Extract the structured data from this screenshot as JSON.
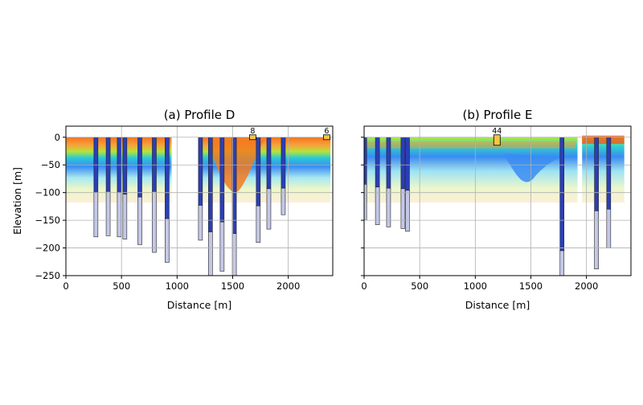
{
  "chart_data": [
    {
      "type": "heatmap",
      "title": "(a) Profile D",
      "xlabel": "Distance [m]",
      "ylabel": "Elevation [m]",
      "xlim": [
        0,
        2400
      ],
      "ylim": [
        -250,
        20
      ],
      "xticks": [
        "0",
        "500",
        "1000",
        "1500",
        "2000"
      ],
      "yticks": [
        "0",
        "−50",
        "−100",
        "−150",
        "−200",
        "−250"
      ],
      "grid": true,
      "colormap": "turbo",
      "surface": [
        [
          0,
          0
        ],
        [
          300,
          0
        ],
        [
          600,
          0
        ],
        [
          900,
          0
        ],
        [
          950,
          0
        ]
      ],
      "surface2": [
        [
          1200,
          0
        ],
        [
          1500,
          0
        ],
        [
          1800,
          0
        ],
        [
          2100,
          0
        ],
        [
          2380,
          0
        ]
      ],
      "mask_segments": [
        {
          "x0": 0,
          "x1": 950,
          "bottom": -118
        },
        {
          "x0": 1200,
          "x1": 2380,
          "bottom": -118
        }
      ],
      "gap": [
        950,
        1200
      ],
      "boreholes": [
        {
          "x": 270,
          "bottom": -180,
          "blue_to": -100
        },
        {
          "x": 380,
          "bottom": -178,
          "blue_to": -98
        },
        {
          "x": 480,
          "bottom": -180,
          "blue_to": -100
        },
        {
          "x": 530,
          "bottom": -184,
          "blue_to": -103
        },
        {
          "x": 665,
          "bottom": -194,
          "blue_to": -108
        },
        {
          "x": 795,
          "bottom": -208,
          "blue_to": -98
        },
        {
          "x": 910,
          "bottom": -226,
          "blue_to": -147
        },
        {
          "x": 1210,
          "bottom": -186,
          "blue_to": -123
        },
        {
          "x": 1300,
          "bottom": -260,
          "blue_to": -171
        },
        {
          "x": 1405,
          "bottom": -242,
          "blue_to": -153
        },
        {
          "x": 1515,
          "bottom": -260,
          "blue_to": -174
        },
        {
          "x": 1730,
          "bottom": -190,
          "blue_to": -124
        },
        {
          "x": 1825,
          "bottom": -166,
          "blue_to": -93
        },
        {
          "x": 1955,
          "bottom": -140,
          "blue_to": -92
        }
      ],
      "labeled_wells": [
        {
          "label": "8",
          "x": 1680
        },
        {
          "label": "6",
          "x": 2345
        }
      ]
    },
    {
      "type": "heatmap",
      "title": "(b) Profile E",
      "xlabel": "Distance [m]",
      "ylabel": "",
      "xlim": [
        0,
        2400
      ],
      "ylim": [
        -250,
        20
      ],
      "xticks": [
        "0",
        "500",
        "1000",
        "1500",
        "2000"
      ],
      "yticks": [],
      "grid": true,
      "colormap": "turbo",
      "gap": [
        1920,
        1960
      ],
      "mask_segments": [
        {
          "x0": 0,
          "x1": 1920,
          "bottom": -118
        },
        {
          "x0": 1960,
          "x1": 2340,
          "bottom": -118
        }
      ],
      "boreholes": [
        {
          "x": 5,
          "bottom": -150,
          "blue_to": -85
        },
        {
          "x": 120,
          "bottom": -158,
          "blue_to": -90
        },
        {
          "x": 220,
          "bottom": -162,
          "blue_to": -92
        },
        {
          "x": 350,
          "bottom": -165,
          "blue_to": -93
        },
        {
          "x": 390,
          "bottom": -170,
          "blue_to": -96
        },
        {
          "x": 1780,
          "bottom": -252,
          "blue_to": -205
        },
        {
          "x": 2090,
          "bottom": -238,
          "blue_to": -133
        },
        {
          "x": 2200,
          "bottom": -200,
          "blue_to": -130
        }
      ],
      "labeled_wells": [
        {
          "label": "44",
          "x": 1195
        }
      ]
    }
  ]
}
